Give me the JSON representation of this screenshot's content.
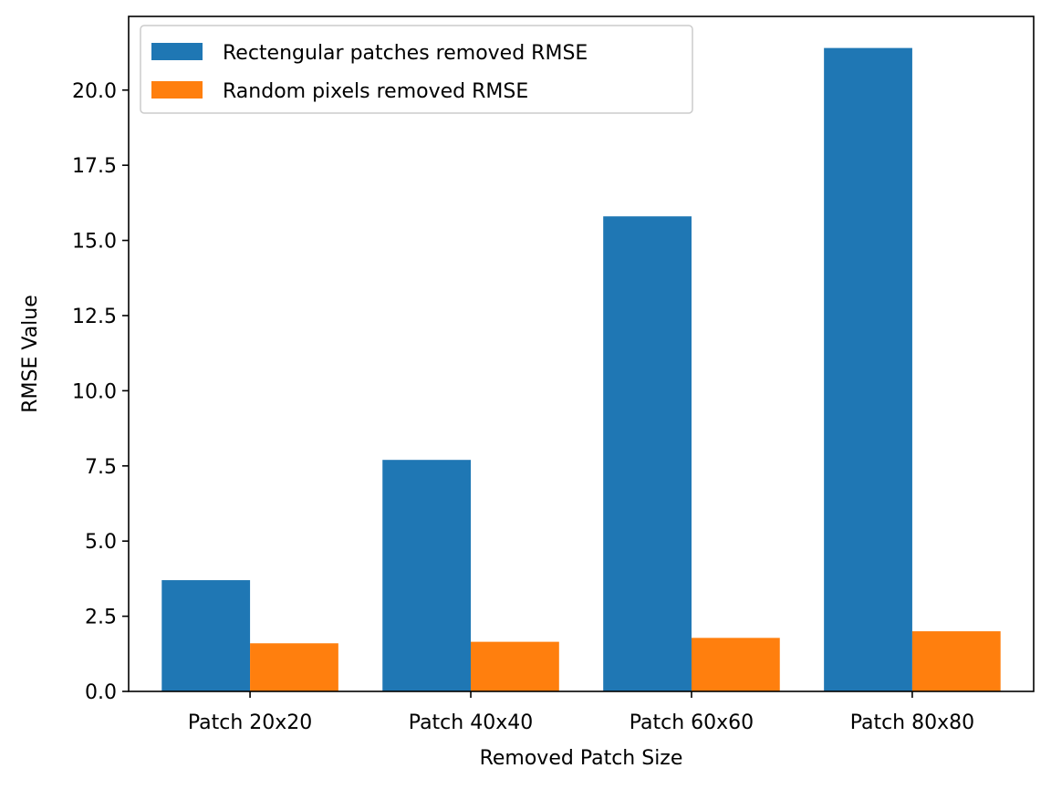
{
  "chart_data": {
    "type": "bar",
    "title": "",
    "xlabel": "Removed Patch Size",
    "ylabel": "RMSE Value",
    "categories": [
      "Patch 20x20",
      "Patch 40x40",
      "Patch 60x60",
      "Patch 80x80"
    ],
    "series": [
      {
        "name": "Rectengular patches removed RMSE",
        "color": "#1f77b4",
        "values": [
          3.7,
          7.7,
          15.8,
          21.4
        ]
      },
      {
        "name": "Random pixels removed RMSE",
        "color": "#ff7f0e",
        "values": [
          1.6,
          1.65,
          1.78,
          2.0
        ]
      }
    ],
    "ylim": [
      0,
      22.45
    ],
    "yticks": [
      0.0,
      2.5,
      5.0,
      7.5,
      10.0,
      12.5,
      15.0,
      17.5,
      20.0
    ],
    "ytick_labels": [
      "0.0",
      "2.5",
      "5.0",
      "7.5",
      "10.0",
      "12.5",
      "15.0",
      "17.5",
      "20.0"
    ],
    "legend_position": "upper-left",
    "grid": false
  }
}
